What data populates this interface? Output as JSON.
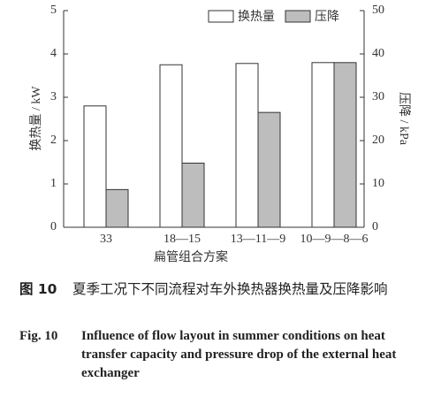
{
  "chart_data": {
    "type": "bar",
    "xlabel": "扁管组合方案",
    "ylabel": "换热量 / kW",
    "y2label": "压降 / kPa",
    "categories": [
      "33",
      "18—15",
      "13—11—9",
      "10—9—8—6"
    ],
    "series": [
      {
        "name": "换热量",
        "color": "#ffffff",
        "values": [
          2.8,
          3.75,
          3.78,
          3.8
        ]
      },
      {
        "name": "压降",
        "color": "#bdbdbd",
        "axis": "y2",
        "values": [
          8.7,
          14.8,
          26.5,
          38
        ]
      }
    ],
    "ylim": [
      0,
      5
    ],
    "yticks": [
      0,
      1,
      2,
      3,
      4,
      5
    ],
    "y2lim": [
      0,
      50
    ],
    "y2ticks": [
      0,
      10,
      20,
      30,
      40,
      50
    ],
    "legend": "top-right",
    "grid": false
  },
  "caption": {
    "cn_label": "图 10",
    "cn_text": "夏季工况下不同流程对车外换热器换热量及压降影响",
    "en_label": "Fig. 10",
    "en_text": "Influence of flow layout in summer conditions on heat transfer capacity and pressure drop of the external heat exchanger"
  }
}
